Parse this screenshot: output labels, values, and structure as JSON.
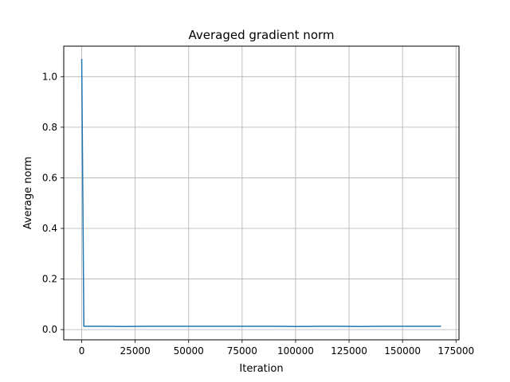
{
  "chart_data": {
    "type": "line",
    "title": "Averaged gradient norm",
    "xlabel": "Iteration",
    "ylabel": "Average norm",
    "xlim": [
      -8400,
      176400
    ],
    "ylim": [
      -0.0405,
      1.1205
    ],
    "xticks": [
      0,
      25000,
      50000,
      75000,
      100000,
      125000,
      150000,
      175000
    ],
    "yticks": [
      0.0,
      0.2,
      0.4,
      0.6,
      0.8,
      1.0
    ],
    "xtick_labels": [
      "0",
      "25000",
      "50000",
      "75000",
      "100000",
      "125000",
      "150000",
      "175000"
    ],
    "ytick_labels": [
      "0.0",
      "0.2",
      "0.4",
      "0.6",
      "0.8",
      "1.0"
    ],
    "grid": true,
    "series": [
      {
        "color": "#1f77b4",
        "x": [
          0,
          1000,
          2000,
          10000,
          20000,
          30000,
          40000,
          50000,
          60000,
          70000,
          80000,
          90000,
          100000,
          110000,
          120000,
          130000,
          140000,
          150000,
          160000,
          168000
        ],
        "y": [
          1.07,
          0.013,
          0.013,
          0.013,
          0.012,
          0.013,
          0.013,
          0.013,
          0.013,
          0.013,
          0.013,
          0.013,
          0.012,
          0.013,
          0.013,
          0.012,
          0.013,
          0.013,
          0.013,
          0.013
        ]
      }
    ]
  }
}
